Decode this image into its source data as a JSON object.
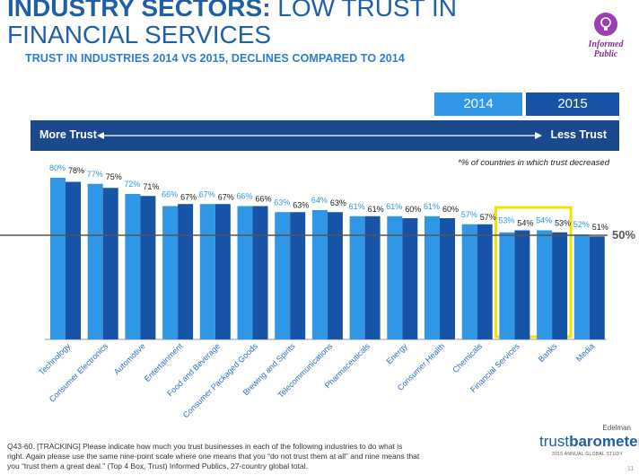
{
  "header": {
    "title_bold": "INDUSTRY SECTORS:",
    "title_rest": " LOW TRUST IN FINANCIAL SERVICES",
    "subtitle": "TRUST IN INDUSTRIES 2014 VS 2015, DECLINES COMPARED TO 2014",
    "logo_line1": "Informed",
    "logo_line2": "Public"
  },
  "legend": {
    "year1": "2014",
    "year2": "2015",
    "more_trust": "More Trust",
    "less_trust": "Less Trust"
  },
  "note": "*% of countries in which trust decreased",
  "footnote": "Q43-60. [TRACKING] Please indicate how much you trust businesses in each of the following industries to do what is right. Again please use the same nine-point scale where one means that you “do not trust them at all” and nine means that you “trust them a great deal.” (Top 4 Box, Trust) Informed Publics, 27-country global total.",
  "brand": {
    "company": "Edelman",
    "name_light": "trust",
    "name_bold": "barometer",
    "sub": "2015 ANNUAL GLOBAL STUDY"
  },
  "page_number": "11",
  "colors": {
    "series2014": "#2f97e6",
    "series2015": "#1754a8",
    "highlight": "#f2e200",
    "band": "#1b4a8c"
  },
  "chart_data": {
    "type": "bar",
    "categories": [
      "Technology",
      "Consumer Electronics",
      "Automotive",
      "Entertainment",
      "Food and Beverage",
      "Consumer Packaged Goods",
      "Brewing and Spirits",
      "Telecommunications",
      "Pharmaceuticals",
      "Energy",
      "Consumer Health",
      "Chemicals",
      "Financial Services",
      "Banks",
      "Media"
    ],
    "series": [
      {
        "name": "2014",
        "values": [
          80,
          77,
          72,
          66,
          67,
          66,
          63,
          64,
          61,
          61,
          61,
          57,
          53,
          54,
          52
        ]
      },
      {
        "name": "2015",
        "values": [
          78,
          75,
          71,
          67,
          67,
          66,
          63,
          63,
          61,
          60,
          60,
          57,
          54,
          53,
          51
        ]
      }
    ],
    "value_labels_2014": [
      "80%",
      "77%",
      "72%",
      "66%",
      "67%",
      "66%",
      "63%",
      "64%",
      "61%",
      "61%",
      "61%",
      "57%",
      "53%",
      "54%",
      "52%"
    ],
    "value_labels_2015": [
      "78%",
      "75%",
      "71%",
      "67%",
      "67%",
      "66%",
      "63%",
      "63%",
      "61%",
      "60%",
      "60%",
      "57%",
      "54%",
      "53%",
      "51%"
    ],
    "reference_line": {
      "value": 50,
      "label": "50%"
    },
    "highlighted": [
      "Financial Services",
      "Banks"
    ],
    "ylim": [
      0,
      80
    ]
  }
}
